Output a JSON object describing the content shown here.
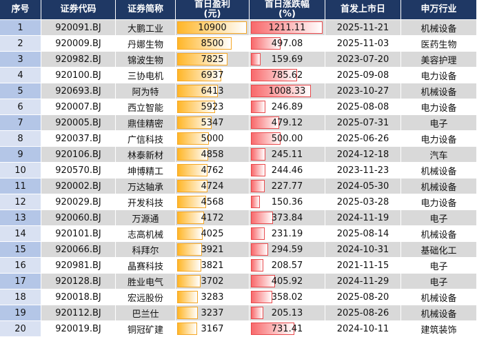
{
  "table": {
    "header": [
      [
        "序号"
      ],
      [
        "证券代码"
      ],
      [
        "证券简称"
      ],
      [
        "首日盈利",
        "(元)"
      ],
      [
        "首日涨跌幅",
        "(%)"
      ],
      [
        "首发上市日"
      ],
      [
        "申万行业"
      ]
    ],
    "rows": [
      [
        "1",
        "920091.BJ",
        "大鹏工业",
        "10900",
        "1211.11",
        "2025-11-21",
        "机械设备"
      ],
      [
        "2",
        "920009.BJ",
        "丹娜生物",
        "8500",
        "497.08",
        "2025-11-03",
        "医药生物"
      ],
      [
        "3",
        "920982.BJ",
        "锦波生物",
        "7825",
        "159.69",
        "2023-07-20",
        "美容护理"
      ],
      [
        "4",
        "920100.BJ",
        "三协电机",
        "6937",
        "785.62",
        "2025-09-08",
        "电力设备"
      ],
      [
        "5",
        "920693.BJ",
        "阿为特",
        "6413",
        "1008.33",
        "2023-10-27",
        "机械设备"
      ],
      [
        "6",
        "920007.BJ",
        "西立智能",
        "5923",
        "246.89",
        "2025-08-08",
        "电力设备"
      ],
      [
        "7",
        "920005.BJ",
        "鼎佳精密",
        "5347",
        "479.12",
        "2025-07-31",
        "电子"
      ],
      [
        "8",
        "920037.BJ",
        "广信科技",
        "5000",
        "500.00",
        "2025-06-26",
        "电力设备"
      ],
      [
        "9",
        "920106.BJ",
        "林泰新材",
        "4858",
        "245.11",
        "2024-12-18",
        "汽车"
      ],
      [
        "10",
        "920570.BJ",
        "坤博精工",
        "4762",
        "244.46",
        "2023-11-23",
        "机械设备"
      ],
      [
        "11",
        "920002.BJ",
        "万达轴承",
        "4724",
        "227.77",
        "2024-05-30",
        "机械设备"
      ],
      [
        "12",
        "920029.BJ",
        "开发科技",
        "4568",
        "150.36",
        "2025-03-28",
        "电力设备"
      ],
      [
        "13",
        "920060.BJ",
        "万源通",
        "4172",
        "373.84",
        "2024-11-19",
        "电子"
      ],
      [
        "14",
        "920101.BJ",
        "志高机械",
        "4025",
        "231.19",
        "2025-08-14",
        "机械设备"
      ],
      [
        "15",
        "920066.BJ",
        "科拜尔",
        "3921",
        "294.59",
        "2024-10-31",
        "基础化工"
      ],
      [
        "16",
        "920981.BJ",
        "晶赛科技",
        "3821",
        "208.57",
        "2021-11-15",
        "电子"
      ],
      [
        "17",
        "920128.BJ",
        "胜业电气",
        "3702",
        "405.92",
        "2024-11-29",
        "电子"
      ],
      [
        "18",
        "920018.BJ",
        "宏远股份",
        "3283",
        "358.02",
        "2025-08-20",
        "机械设备"
      ],
      [
        "19",
        "920112.BJ",
        "巴兰仕",
        "3237",
        "205.13",
        "2025-08-26",
        "机械设备"
      ],
      [
        "20",
        "920019.BJ",
        "铜冠矿建",
        "3167",
        "731.41",
        "2024-10-11",
        "建筑装饰"
      ]
    ]
  }
}
